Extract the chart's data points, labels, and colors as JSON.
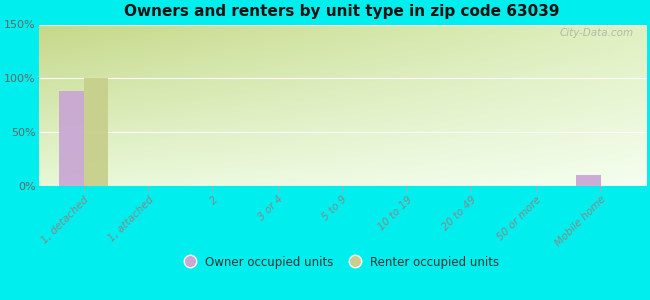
{
  "title": "Owners and renters by unit type in zip code 63039",
  "categories": [
    "1, detached",
    "1, attached",
    "2",
    "3 or 4",
    "5 to 9",
    "10 to 19",
    "20 to 49",
    "50 or more",
    "Mobile home"
  ],
  "owner_values": [
    88,
    0,
    0,
    0,
    0,
    0,
    0,
    0,
    10
  ],
  "renter_values": [
    100,
    0,
    0,
    0,
    0,
    0,
    0,
    0,
    0
  ],
  "owner_color": "#c9a8d4",
  "renter_color": "#c8cf8c",
  "background_color": "#00eeee",
  "grad_top_left": "#c8d890",
  "grad_top_right": "#e8f5d8",
  "grad_bottom": "#f0fae8",
  "ylim": [
    0,
    150
  ],
  "yticks": [
    0,
    50,
    100,
    150
  ],
  "ytick_labels": [
    "0%",
    "50%",
    "100%",
    "150%"
  ],
  "watermark": "City-Data.com",
  "legend_owner": "Owner occupied units",
  "legend_renter": "Renter occupied units",
  "bar_width": 0.38
}
